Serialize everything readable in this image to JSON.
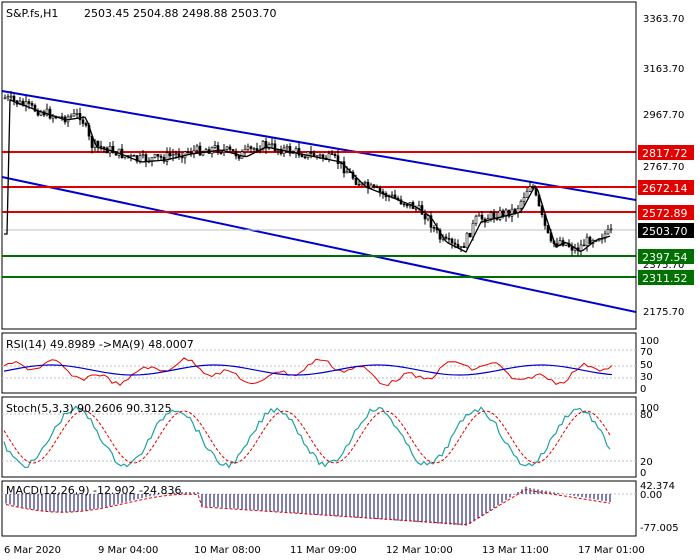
{
  "main": {
    "symbol": "S&P.fs,H1",
    "ohlc": "2503.45 2504.88 2498.88 2503.70",
    "price_ticks": [
      "3363.70",
      "3163.70",
      "2967.70",
      "2767.70",
      "2571.70",
      "2375.70",
      "2175.70"
    ],
    "levels": [
      {
        "value": "2817.72",
        "color": "#e00000"
      },
      {
        "value": "2672.14",
        "color": "#e00000"
      },
      {
        "value": "2572.89",
        "color": "#e00000"
      },
      {
        "value": "2397.54",
        "color": "#007000"
      },
      {
        "value": "2311.52",
        "color": "#007000"
      }
    ],
    "current_price": "2503.70"
  },
  "rsi": {
    "title": "RSI(14) 49.8989  ->MA(9) 48.0007",
    "ticks": [
      "100",
      "70",
      "50",
      "30",
      "0"
    ]
  },
  "stoch": {
    "title": "Stoch(5,3,3) 90.2606 90.3125",
    "ticks": [
      "100",
      "80",
      "20",
      "0"
    ]
  },
  "macd": {
    "title": "MACD(12,26,9) -12.902 -24.836",
    "ticks": [
      "42.374",
      "0.00",
      "-77.005"
    ]
  },
  "time_axis": [
    "6 Mar 2020",
    "9 Mar 04:00",
    "10 Mar 08:00",
    "11 Mar 09:00",
    "12 Mar 10:00",
    "13 Mar 11:00",
    "17 Mar 01:00"
  ],
  "colors": {
    "channel": "#0000cc",
    "support": "#007000",
    "resistance": "#e00000",
    "rsi": "#0000cc",
    "rsi_ma": "#e00000",
    "stoch_main": "#20a0a0",
    "stoch_signal": "#e00000"
  }
}
